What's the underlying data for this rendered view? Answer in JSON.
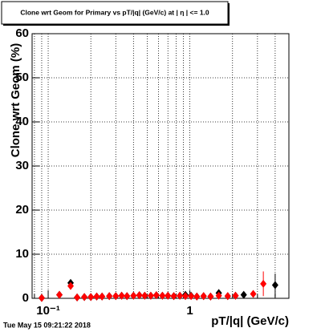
{
  "chart_data": {
    "type": "scatter",
    "title": "Clone wrt Geom for Primary vs pT/|q| (GeV/c) at | η | <= 1.0",
    "x_label": "pT/|q| (GeV/c)",
    "y_label": "Clone wrt Geom (%)",
    "timestamp": "Tue May 15 09:21:22 2018",
    "x_log": true,
    "grid": true,
    "x": [
      0.09,
      0.12,
      0.144,
      0.16,
      0.18,
      0.2,
      0.22,
      0.24,
      0.27,
      0.3,
      0.33,
      0.36,
      0.4,
      0.44,
      0.48,
      0.53,
      0.58,
      0.64,
      0.7,
      0.77,
      0.85,
      0.93,
      1.02,
      1.12,
      1.25,
      1.4,
      1.6,
      1.85,
      2.1,
      2.4,
      2.8,
      3.3,
      4.0
    ],
    "series": [
      {
        "name": "black",
        "color": "#000000",
        "values": [
          0.1,
          0.8,
          3.5,
          0.2,
          0.3,
          0.3,
          0.4,
          0.4,
          0.5,
          0.5,
          0.6,
          0.5,
          0.6,
          0.7,
          0.6,
          0.6,
          0.7,
          0.6,
          0.6,
          0.5,
          0.6,
          0.8,
          0.6,
          0.4,
          0.5,
          0.4,
          1.2,
          0.5,
          0.6,
          0.8,
          null,
          null,
          3.0
        ],
        "errors": [
          0.2,
          0.3,
          0.6,
          0.2,
          0.2,
          0.2,
          0.2,
          0.2,
          0.2,
          0.2,
          0.2,
          0.2,
          0.2,
          0.2,
          0.2,
          0.2,
          0.2,
          0.2,
          0.2,
          0.2,
          0.2,
          0.3,
          0.2,
          0.2,
          0.2,
          0.3,
          0.4,
          0.3,
          0.4,
          0.6,
          null,
          null,
          2.6
        ]
      },
      {
        "name": "red",
        "color": "#ff0000",
        "values": [
          0.1,
          0.8,
          2.8,
          0.2,
          0.3,
          0.3,
          0.4,
          0.4,
          0.5,
          0.5,
          0.6,
          0.5,
          0.6,
          0.7,
          0.6,
          0.6,
          0.7,
          0.6,
          0.6,
          0.5,
          0.6,
          0.5,
          0.5,
          0.4,
          0.5,
          0.4,
          0.6,
          0.5,
          0.6,
          null,
          1.0,
          3.3,
          null
        ],
        "errors": [
          0.2,
          0.3,
          0.6,
          0.2,
          0.2,
          0.2,
          0.2,
          0.2,
          0.2,
          0.2,
          0.2,
          0.2,
          0.2,
          0.2,
          0.2,
          0.2,
          0.2,
          0.2,
          0.2,
          0.2,
          0.2,
          0.2,
          0.2,
          0.2,
          0.2,
          0.3,
          0.3,
          0.3,
          0.4,
          null,
          0.6,
          2.8,
          null
        ]
      }
    ],
    "xlim": [
      0.077,
      5
    ],
    "xticks": [
      {
        "value": 0.1,
        "label": "10⁻¹"
      },
      1
    ],
    "xminor_ticks": [
      0.08,
      0.09,
      0.2,
      0.3,
      0.4,
      0.5,
      0.6,
      0.7,
      0.8,
      0.9,
      2,
      3,
      4
    ],
    "ylim": [
      0,
      60
    ],
    "yticks": [
      0,
      10,
      20,
      30,
      40,
      50,
      60
    ]
  }
}
